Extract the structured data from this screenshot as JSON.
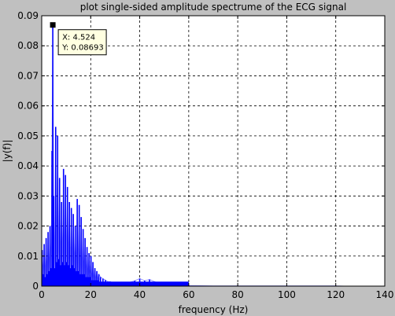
{
  "chart_data": {
    "type": "line",
    "title": "plot single-sided amplitude spectrume of the ECG signal",
    "xlabel": "frequency (Hz)",
    "ylabel": "|y(f)|",
    "xlim": [
      0,
      140
    ],
    "ylim": [
      0,
      0.09
    ],
    "x_ticks": [
      0,
      20,
      40,
      60,
      80,
      100,
      120,
      140
    ],
    "x_tick_labels": [
      "0",
      "20",
      "40",
      "60",
      "80",
      "100",
      "120",
      "140"
    ],
    "y_ticks": [
      0,
      0.01,
      0.02,
      0.03,
      0.04,
      0.05,
      0.06,
      0.07,
      0.08,
      0.09
    ],
    "y_tick_labels": [
      "0",
      "0.01",
      "0.02",
      "0.03",
      "0.04",
      "0.05",
      "0.06",
      "0.07",
      "0.08",
      "0.09"
    ],
    "grid": true,
    "line_color": "#0000ff",
    "series": [
      {
        "x": [
          0.2,
          0.6,
          1.0,
          1.4,
          1.8,
          2.2,
          2.6,
          3.0,
          3.4,
          3.8,
          4.2,
          4.524,
          4.9,
          5.3,
          5.7,
          6.1,
          6.5,
          6.9,
          7.3,
          7.7,
          8.1,
          8.5,
          8.9,
          9.3,
          9.7,
          10.1,
          10.5,
          10.9,
          11.3,
          11.7,
          12.1,
          12.5,
          12.9,
          13.3,
          13.7,
          14.1,
          14.5,
          14.9,
          15.3,
          15.7,
          16.1,
          16.5,
          16.9,
          17.3,
          17.7,
          18.1,
          18.5,
          18.9,
          19.3,
          19.7,
          20.1,
          20.5,
          20.9,
          21.3,
          21.7,
          22.1,
          22.5,
          22.9,
          23.3,
          24.0,
          25.0,
          26.0,
          27.0,
          28.0,
          29.0,
          30.0,
          32.0,
          34.0,
          36.0,
          38.0,
          40.0,
          42.0,
          44.0,
          46.0,
          48.0,
          50.0,
          52.0,
          55.0,
          60.0,
          70.0,
          80.0,
          90.0,
          100.0,
          110.0,
          120.0,
          125.0
        ],
        "y": [
          0.012,
          0.004,
          0.014,
          0.003,
          0.016,
          0.004,
          0.018,
          0.005,
          0.02,
          0.006,
          0.045,
          0.08693,
          0.03,
          0.006,
          0.053,
          0.008,
          0.05,
          0.009,
          0.036,
          0.007,
          0.028,
          0.008,
          0.039,
          0.007,
          0.037,
          0.008,
          0.033,
          0.007,
          0.028,
          0.006,
          0.026,
          0.007,
          0.024,
          0.006,
          0.02,
          0.005,
          0.029,
          0.005,
          0.027,
          0.004,
          0.023,
          0.004,
          0.019,
          0.004,
          0.016,
          0.003,
          0.013,
          0.003,
          0.011,
          0.003,
          0.01,
          0.002,
          0.008,
          0.002,
          0.006,
          0.002,
          0.005,
          0.002,
          0.004,
          0.003,
          0.0025,
          0.002,
          0.0015,
          0.0015,
          0.001,
          0.001,
          0.0005,
          0.0008,
          0.0013,
          0.0018,
          0.0025,
          0.0018,
          0.0022,
          0.0015,
          0.001,
          0.0005,
          0.0003,
          0.0002,
          0.0002,
          0.0001,
          0.0001,
          0.0001,
          0.0001,
          0.0001,
          0.0001,
          0.0
        ]
      }
    ],
    "annotations": [
      {
        "x": 4.524,
        "y": 0.08693,
        "text_x": "X: 4.524",
        "text_y": "Y: 0.08693"
      }
    ]
  }
}
